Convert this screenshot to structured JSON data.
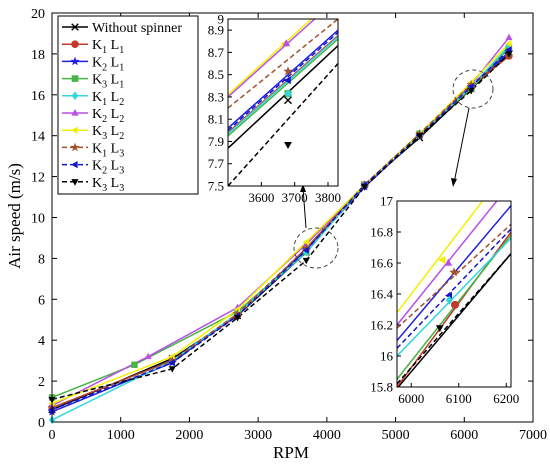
{
  "chart_data": {
    "type": "line",
    "xlabel": "RPM",
    "ylabel": "Air speed (m/s)",
    "xlim": [
      0,
      7000
    ],
    "ylim": [
      0,
      20
    ],
    "xticks": [
      0,
      1000,
      2000,
      3000,
      4000,
      5000,
      6000,
      7000
    ],
    "yticks": [
      0,
      2,
      4,
      6,
      8,
      10,
      12,
      14,
      16,
      18,
      20
    ],
    "grid": false,
    "legend": "top-left",
    "series": [
      {
        "name": "Without spinner",
        "color": "#000000",
        "marker": "x",
        "dash": "solid",
        "x": [
          0,
          1750,
          2700,
          3700,
          4550,
          5350,
          6100,
          6650
        ],
        "y": [
          0.6,
          3.1,
          5.2,
          8.3,
          11.6,
          13.9,
          16.3,
          18.0
        ]
      },
      {
        "name": "K1 L1",
        "sub": [
          "1",
          "1"
        ],
        "color": "#c0392b",
        "marker": "circle",
        "dash": "solid",
        "x": [
          0,
          1750,
          2700,
          3700,
          4550,
          5350,
          6100,
          6650
        ],
        "y": [
          0.7,
          3.0,
          5.2,
          8.5,
          11.6,
          14.0,
          16.4,
          17.9
        ]
      },
      {
        "name": "K2 L1",
        "sub": [
          "2",
          "1"
        ],
        "color": "#1f1fe0",
        "marker": "star",
        "dash": "solid",
        "x": [
          0,
          1750,
          2700,
          3700,
          4550,
          5350,
          6100,
          6650
        ],
        "y": [
          0.5,
          2.9,
          5.3,
          8.4,
          11.5,
          14.0,
          16.4,
          18.1
        ]
      },
      {
        "name": "K3 L1",
        "sub": [
          "3",
          "1"
        ],
        "color": "#44b544",
        "marker": "square",
        "dash": "solid",
        "x": [
          0,
          1200,
          2700,
          3700,
          4550,
          5350,
          6100,
          6650
        ],
        "y": [
          1.2,
          2.8,
          5.4,
          8.3,
          11.6,
          14.1,
          16.3,
          18.3
        ]
      },
      {
        "name": "K1 L2",
        "sub": [
          "1",
          "2"
        ],
        "color": "#33d6e0",
        "marker": "diamond",
        "dash": "solid",
        "x": [
          0,
          1750,
          2700,
          3700,
          4550,
          5350,
          6100,
          6650
        ],
        "y": [
          0.1,
          3.0,
          5.3,
          8.3,
          11.6,
          14.0,
          16.4,
          18.4
        ]
      },
      {
        "name": "K2 L2",
        "sub": [
          "2",
          "2"
        ],
        "color": "#b84fe6",
        "marker": "triangle-up",
        "dash": "solid",
        "x": [
          0,
          1400,
          2700,
          3700,
          4550,
          5350,
          6100,
          6650
        ],
        "y": [
          0.8,
          3.2,
          5.6,
          8.7,
          11.6,
          14.1,
          16.5,
          18.8
        ]
      },
      {
        "name": "K3 L2",
        "sub": [
          "3",
          "2"
        ],
        "color": "#f0f000",
        "marker": "triangle-left",
        "dash": "solid",
        "x": [
          0,
          1750,
          2700,
          3700,
          4550,
          5350,
          6100,
          6650
        ],
        "y": [
          0.9,
          3.2,
          5.5,
          8.8,
          11.6,
          14.1,
          16.6,
          18.5
        ]
      },
      {
        "name": "K1 L3",
        "sub": [
          "1",
          "3"
        ],
        "color": "#a0522d",
        "marker": "asterisk",
        "dash": "dashed",
        "x": [
          0,
          1750,
          2700,
          3700,
          4550,
          5350,
          6100,
          6650
        ],
        "y": [
          0.7,
          3.0,
          5.3,
          8.5,
          11.6,
          14.1,
          16.5,
          17.9
        ]
      },
      {
        "name": "K2 L3",
        "sub": [
          "2",
          "3"
        ],
        "color": "#1414c8",
        "marker": "triangle-left",
        "dash": "dashed",
        "x": [
          0,
          1750,
          2700,
          3700,
          4550,
          5350,
          6100,
          6650
        ],
        "y": [
          0.6,
          2.9,
          5.2,
          8.4,
          11.6,
          14.0,
          16.4,
          18.2
        ]
      },
      {
        "name": "K3 L3",
        "sub": [
          "3",
          "3"
        ],
        "color": "#000000",
        "marker": "triangle-down",
        "dash": "dashed",
        "x": [
          0,
          1750,
          2700,
          3700,
          4550,
          5350,
          6100,
          6650
        ],
        "y": [
          1.1,
          2.6,
          5.1,
          7.9,
          11.5,
          14.0,
          16.2,
          18.0
        ]
      }
    ],
    "insets": [
      {
        "xlim": [
          3500,
          3830
        ],
        "ylim": [
          7.5,
          9.0
        ],
        "xticks": [
          3600,
          3700,
          3800
        ],
        "yticks": [
          7.5,
          7.7,
          7.9,
          8.1,
          8.3,
          8.5,
          8.7,
          8.9
        ],
        "ytick_labels": [
          "7.5",
          "7.7",
          "7.9",
          "8.1",
          "8.3",
          "8.5",
          "8.7",
          "8.9"
        ],
        "extra_top_label": "9",
        "lines": [
          {
            "ref": "Without spinner",
            "x": [
              3500,
              3830
            ],
            "y": [
              7.84,
              8.76
            ]
          },
          {
            "ref": "K1 L1",
            "x": [
              3500,
              3830
            ],
            "y": [
              7.98,
              8.85
            ]
          },
          {
            "ref": "K2 L1",
            "x": [
              3500,
              3830
            ],
            "y": [
              8.02,
              8.9
            ]
          },
          {
            "ref": "K3 L1",
            "x": [
              3500,
              3830
            ],
            "y": [
              7.95,
              8.82
            ]
          },
          {
            "ref": "K1 L2",
            "x": [
              3500,
              3830
            ],
            "y": [
              7.97,
              8.84
            ]
          },
          {
            "ref": "K2 L2",
            "x": [
              3500,
              3760
            ],
            "y": [
              8.3,
              9.0
            ]
          },
          {
            "ref": "K3 L2",
            "x": [
              3500,
              3750
            ],
            "y": [
              8.32,
              9.0
            ]
          },
          {
            "ref": "K1 L3",
            "x": [
              3500,
              3830
            ],
            "y": [
              8.2,
              9.0
            ]
          },
          {
            "ref": "K2 L3",
            "x": [
              3500,
              3830
            ],
            "y": [
              8.0,
              8.88
            ]
          },
          {
            "ref": "K3 L3",
            "x": [
              3500,
              3830
            ],
            "y": [
              7.5,
              8.6
            ]
          }
        ],
        "points": [
          {
            "ref": "K3 L2",
            "x": 3670,
            "y": 8.78
          },
          {
            "ref": "K2 L2",
            "x": 3675,
            "y": 8.78
          },
          {
            "ref": "K1 L3",
            "x": 3680,
            "y": 8.53
          },
          {
            "ref": "K2 L3",
            "x": 3680,
            "y": 8.45
          },
          {
            "ref": "K3 L1",
            "x": 3680,
            "y": 8.33
          },
          {
            "ref": "K1 L2",
            "x": 3680,
            "y": 8.33
          },
          {
            "ref": "Without spinner",
            "x": 3680,
            "y": 8.27
          },
          {
            "ref": "K3 L3",
            "x": 3680,
            "y": 7.87
          }
        ]
      },
      {
        "xlim": [
          5970,
          6210
        ],
        "ylim": [
          15.8,
          17.0
        ],
        "xticks": [
          6000,
          6100,
          6200
        ],
        "yticks": [
          15.8,
          16.0,
          16.2,
          16.4,
          16.6,
          16.8,
          17.0
        ],
        "ytick_labels": [
          "15.8",
          "16",
          "16.2",
          "16.4",
          "16.6",
          "16.8",
          "17"
        ],
        "lines": [
          {
            "ref": "Without spinner",
            "x": [
              5970,
              6210
            ],
            "y": [
              15.79,
              16.66
            ]
          },
          {
            "ref": "K1 L1",
            "x": [
              5970,
              6210
            ],
            "y": [
              15.8,
              16.8
            ]
          },
          {
            "ref": "K2 L1",
            "x": [
              5970,
              6210
            ],
            "y": [
              16.1,
              16.97
            ]
          },
          {
            "ref": "K3 L1",
            "x": [
              5970,
              6210
            ],
            "y": [
              15.85,
              16.78
            ]
          },
          {
            "ref": "K1 L2",
            "x": [
              5970,
              6210
            ],
            "y": [
              16.0,
              16.76
            ]
          },
          {
            "ref": "K2 L2",
            "x": [
              5970,
              6180
            ],
            "y": [
              16.2,
              17.0
            ]
          },
          {
            "ref": "K3 L2",
            "x": [
              5970,
              6150
            ],
            "y": [
              16.28,
              17.0
            ]
          },
          {
            "ref": "K1 L3",
            "x": [
              5970,
              6210
            ],
            "y": [
              16.18,
              16.85
            ]
          },
          {
            "ref": "K2 L3",
            "x": [
              5970,
              6210
            ],
            "y": [
              16.05,
              16.82
            ]
          },
          {
            "ref": "K3 L3",
            "x": [
              5970,
              6210
            ],
            "y": [
              15.82,
              16.66
            ]
          }
        ],
        "points": [
          {
            "ref": "K3 L2",
            "x": 6065,
            "y": 16.62
          },
          {
            "ref": "K2 L2",
            "x": 6078,
            "y": 16.6
          },
          {
            "ref": "K1 L3",
            "x": 6090,
            "y": 16.54
          },
          {
            "ref": "K2 L3",
            "x": 6080,
            "y": 16.39
          },
          {
            "ref": "K1 L2",
            "x": 6080,
            "y": 16.36
          },
          {
            "ref": "K1 L1",
            "x": 6092,
            "y": 16.33
          },
          {
            "ref": "K3 L3",
            "x": 6060,
            "y": 16.18
          }
        ]
      }
    ]
  }
}
